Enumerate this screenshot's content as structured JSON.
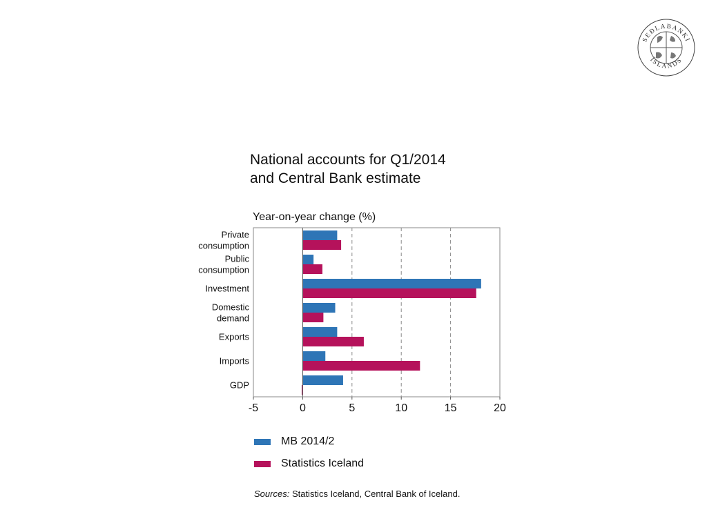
{
  "logo": {
    "text_top": "SEÐLABANKI",
    "text_bottom": "ÍSLANDS"
  },
  "chart_data": {
    "type": "bar",
    "orientation": "horizontal",
    "title": [
      "National accounts for Q1/2014",
      "and Central Bank estimate"
    ],
    "ylabel": "Year-on-year change (%)",
    "categories": [
      [
        "Private",
        "consumption"
      ],
      [
        "Public",
        "consumption"
      ],
      [
        "Investment"
      ],
      [
        "Domestic",
        "demand"
      ],
      [
        "Exports"
      ],
      [
        "Imports"
      ],
      [
        "GDP"
      ]
    ],
    "series": [
      {
        "name": "MB 2014/2",
        "color": "#2e75b6",
        "values": [
          3.5,
          1.1,
          18.1,
          3.3,
          3.5,
          2.3,
          4.1
        ]
      },
      {
        "name": "Statistics Iceland",
        "color": "#b5125b",
        "values": [
          3.9,
          2.0,
          17.6,
          2.1,
          6.2,
          11.9,
          -0.1
        ]
      }
    ],
    "xlim": [
      -5,
      20
    ],
    "xticks": [
      "-5",
      "0",
      "5",
      "10",
      "15",
      "20"
    ],
    "grid": "vertical-dashed",
    "legend": "bottom"
  },
  "sources": {
    "label": "Sources:",
    "text": "Statistics Iceland, Central Bank of Iceland."
  }
}
